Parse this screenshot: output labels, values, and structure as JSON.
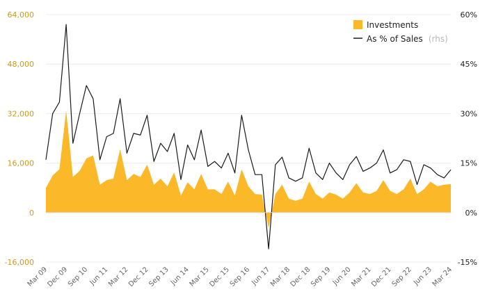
{
  "chart_data": {
    "type": "area",
    "left_axis": {
      "ticks": [
        "-16,000",
        "0",
        "16,000",
        "32,000",
        "48,000",
        "64,000"
      ],
      "values": [
        -16000,
        0,
        16000,
        32000,
        48000,
        64000
      ],
      "range": [
        -16000,
        64000
      ]
    },
    "right_axis": {
      "ticks": [
        "-15%",
        "0%",
        "15%",
        "30%",
        "45%",
        "60%"
      ],
      "values": [
        -15,
        0,
        15,
        30,
        45,
        60
      ],
      "range": [
        -15,
        60
      ]
    },
    "x_ticks": [
      "Mar 09",
      "Dec 09",
      "Sep 10",
      "Jun 11",
      "Mar 12",
      "Dec 12",
      "Sep 13",
      "Jun 14",
      "Mar 15",
      "Dec 15",
      "Sep 16",
      "Jun 17",
      "Mar 18",
      "Dec 18",
      "Sep 19",
      "Jun 20",
      "Mar 21",
      "Dec 21",
      "Sep 22",
      "Jun 23",
      "Mar 24"
    ],
    "x_range": [
      "Mar 09",
      "Mar 24"
    ],
    "grid": "horizontal",
    "legend_position": "top-right",
    "colors": {
      "investments": "#fbb829",
      "ratio": "#1a1a1a",
      "left_ticks": "#d09a17"
    },
    "series": [
      {
        "name": "Investments",
        "axis": "left",
        "style": "area",
        "values": [
          8000,
          12000,
          14000,
          33000,
          11500,
          13500,
          17500,
          18500,
          9000,
          10500,
          11000,
          20500,
          10500,
          12500,
          11500,
          15500,
          9000,
          11000,
          8500,
          13000,
          5500,
          9800,
          7500,
          12500,
          7500,
          7500,
          6000,
          10000,
          5500,
          14000,
          8500,
          6000,
          5800,
          -5000,
          6000,
          9000,
          4500,
          3800,
          4500,
          10000,
          6000,
          4500,
          6500,
          5800,
          4500,
          6500,
          9500,
          6500,
          6000,
          7000,
          10500,
          7000,
          6000,
          7500,
          11000,
          6000,
          7500,
          10000,
          8500,
          9000,
          9200
        ]
      },
      {
        "name": "As % of Sales",
        "axis": "right",
        "style": "line",
        "values": [
          16,
          30,
          33.5,
          57,
          21,
          30,
          38.5,
          34.5,
          16,
          23,
          24,
          34.5,
          18,
          24,
          23.5,
          29.5,
          15.5,
          21,
          18.5,
          24,
          10,
          20.5,
          16,
          25,
          14,
          15.5,
          13.5,
          18,
          12,
          29.5,
          19,
          11.5,
          11.5,
          -11,
          14.5,
          16.8,
          10.5,
          9.5,
          10.5,
          19.5,
          12,
          10,
          15,
          12,
          10,
          14.5,
          17,
          12.5,
          13.5,
          15,
          19,
          12,
          13,
          16,
          15.5,
          8.5,
          14.5,
          13.5,
          11.5,
          10.5,
          13
        ]
      }
    ]
  },
  "legend": [
    {
      "label": "Investments",
      "note": ""
    },
    {
      "label": "As % of Sales",
      "note": "(rhs)"
    }
  ]
}
